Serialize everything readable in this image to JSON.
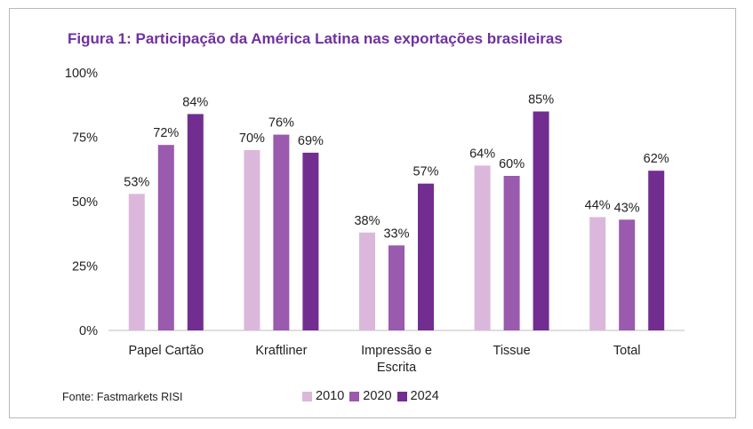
{
  "title": "Figura 1: Participação da América Latina nas exportações brasileiras",
  "source": "Fonte: Fastmarkets RISI",
  "colors": {
    "2010": "#dbb8db",
    "2020": "#9a5aad",
    "2024": "#722d90",
    "title": "#7030a0"
  },
  "chart_data": {
    "type": "bar",
    "title": "Figura 1: Participação da América Latina nas exportações brasileiras",
    "categories": [
      [
        "Papel Cartão"
      ],
      [
        "Kraftliner"
      ],
      [
        "Impressão e",
        "Escrita"
      ],
      [
        "Tissue"
      ],
      [
        "Total"
      ]
    ],
    "series": [
      {
        "name": "2010",
        "color": "#dbb8db",
        "values": [
          53,
          70,
          38,
          64,
          44
        ]
      },
      {
        "name": "2020",
        "color": "#9a5aad",
        "values": [
          72,
          76,
          33,
          60,
          43
        ]
      },
      {
        "name": "2024",
        "color": "#722d90",
        "values": [
          84,
          69,
          57,
          85,
          62
        ]
      }
    ],
    "ylim": [
      0,
      100
    ],
    "yticks": [
      0,
      25,
      50,
      75,
      100
    ],
    "ytick_labels": [
      "0%",
      "25%",
      "50%",
      "75%",
      "100%"
    ],
    "data_label_suffix": "%",
    "legend_position": "bottom",
    "grid": false
  }
}
